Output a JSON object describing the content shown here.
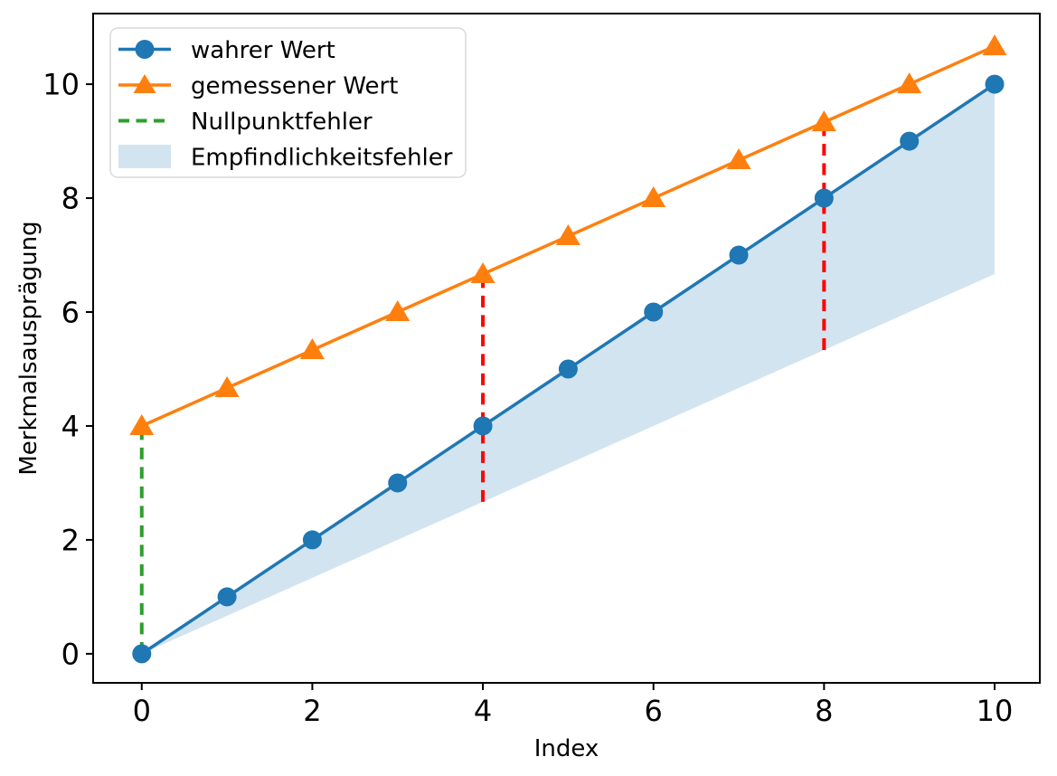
{
  "figure": {
    "background": "#ffffff"
  },
  "chart_data": {
    "type": "line",
    "title": "",
    "xlabel": "Index",
    "ylabel": "Merkmalsausprägung",
    "xlim": [
      -0.57,
      10.53
    ],
    "ylim": [
      -0.51,
      11.24
    ],
    "xticks": [
      0,
      2,
      4,
      6,
      8,
      10
    ],
    "yticks": [
      0,
      2,
      4,
      6,
      8,
      10
    ],
    "grid": false,
    "x": [
      0,
      1,
      2,
      3,
      4,
      5,
      6,
      7,
      8,
      9,
      10
    ],
    "series": [
      {
        "name": "wahrer Wert",
        "values": [
          0,
          1,
          2,
          3,
          4,
          5,
          6,
          7,
          8,
          9,
          10
        ],
        "color": "#1f77b4",
        "marker": "circle",
        "linestyle": "solid"
      },
      {
        "name": "gemessener Wert",
        "values": [
          4,
          4.667,
          5.333,
          6,
          6.667,
          7.333,
          8,
          8.667,
          9.333,
          10,
          10.667
        ],
        "color": "#ff7f0e",
        "marker": "triangle",
        "linestyle": "solid"
      }
    ],
    "fill_between": {
      "legend_label": "Empfindlichkeitsfehler",
      "x": [
        0,
        1,
        2,
        3,
        4,
        5,
        6,
        7,
        8,
        9,
        10
      ],
      "upper": [
        0,
        1,
        2,
        3,
        4,
        5,
        6,
        7,
        8,
        9,
        10
      ],
      "lower": [
        0,
        0.667,
        1.333,
        2,
        2.667,
        3.333,
        4,
        4.667,
        5.333,
        6,
        6.667
      ],
      "color": "#d2e4f0"
    },
    "vlines": [
      {
        "id": "zero-point-error-line",
        "legend_label": "Nullpunktfehler",
        "x": 0,
        "y1": 0,
        "y2": 4,
        "color": "#2ca02c",
        "linestyle": "dashed"
      },
      {
        "id": "red-dashed-indicator-x4",
        "legend_label": "",
        "x": 4,
        "y1": 2.667,
        "y2": 6.667,
        "color": "#ff0000",
        "linestyle": "dashed"
      },
      {
        "id": "red-dashed-indicator-x8",
        "legend_label": "",
        "x": 8,
        "y1": 5.333,
        "y2": 9.333,
        "color": "#ff0000",
        "linestyle": "dashed"
      }
    ],
    "legend": {
      "position": "upper left",
      "entries": [
        {
          "label": "wahrer Wert",
          "type": "line-marker",
          "marker": "circle",
          "color": "#1f77b4"
        },
        {
          "label": "gemessener Wert",
          "type": "line-marker",
          "marker": "triangle",
          "color": "#ff7f0e"
        },
        {
          "label": "Nullpunktfehler",
          "type": "dashed-line",
          "color": "#2ca02c"
        },
        {
          "label": "Empfindlichkeitsfehler",
          "type": "patch",
          "color": "#d2e4f0"
        }
      ]
    }
  }
}
